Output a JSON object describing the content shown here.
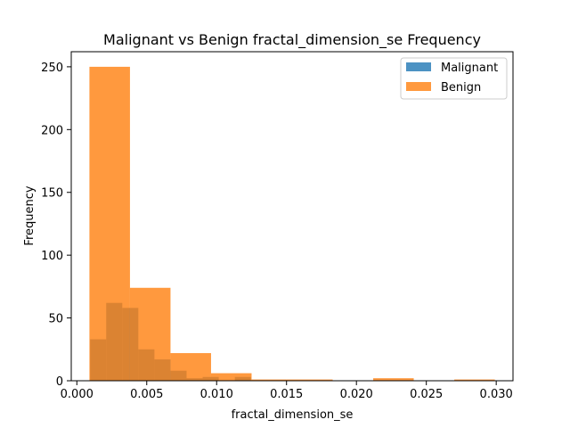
{
  "chart_data": {
    "type": "bar",
    "title": "Malignant vs Benign fractal_dimension_se Frequency",
    "xlabel": "fractal_dimension_se",
    "ylabel": "Frequency",
    "xlim": [
      -0.0004,
      0.0312
    ],
    "ylim": [
      0,
      262
    ],
    "x_ticks": [
      0.0,
      0.005,
      0.01,
      0.015,
      0.02,
      0.025,
      0.03
    ],
    "x_tick_labels": [
      "0.000",
      "0.005",
      "0.010",
      "0.015",
      "0.020",
      "0.025",
      "0.030"
    ],
    "y_ticks": [
      0,
      50,
      100,
      150,
      200,
      250
    ],
    "y_tick_labels": [
      "0",
      "50",
      "100",
      "150",
      "200",
      "250"
    ],
    "grid": false,
    "legend_position": "top-right",
    "series": [
      {
        "name": "Malignant",
        "color": "#1f77b4",
        "opacity": 0.8,
        "bins": [
          {
            "x0": 0.00095,
            "x1": 0.0021,
            "count": 33
          },
          {
            "x0": 0.0021,
            "x1": 0.00325,
            "count": 62
          },
          {
            "x0": 0.00325,
            "x1": 0.0044,
            "count": 58
          },
          {
            "x0": 0.0044,
            "x1": 0.00555,
            "count": 25
          },
          {
            "x0": 0.00555,
            "x1": 0.0067,
            "count": 17
          },
          {
            "x0": 0.0067,
            "x1": 0.00785,
            "count": 8
          },
          {
            "x0": 0.00785,
            "x1": 0.009,
            "count": 2
          },
          {
            "x0": 0.009,
            "x1": 0.01015,
            "count": 3
          },
          {
            "x0": 0.01015,
            "x1": 0.0113,
            "count": 0
          },
          {
            "x0": 0.0113,
            "x1": 0.01245,
            "count": 3
          }
        ]
      },
      {
        "name": "Benign",
        "color": "#ff7f0e",
        "opacity": 0.8,
        "bins": [
          {
            "x0": 0.0009,
            "x1": 0.0038,
            "count": 250
          },
          {
            "x0": 0.0038,
            "x1": 0.0067,
            "count": 74
          },
          {
            "x0": 0.0067,
            "x1": 0.0096,
            "count": 22
          },
          {
            "x0": 0.0096,
            "x1": 0.0125,
            "count": 6
          },
          {
            "x0": 0.0125,
            "x1": 0.0154,
            "count": 1
          },
          {
            "x0": 0.0154,
            "x1": 0.0183,
            "count": 1
          },
          {
            "x0": 0.0183,
            "x1": 0.0212,
            "count": 0
          },
          {
            "x0": 0.0212,
            "x1": 0.0241,
            "count": 2
          },
          {
            "x0": 0.0241,
            "x1": 0.027,
            "count": 0
          },
          {
            "x0": 0.027,
            "x1": 0.0299,
            "count": 1
          }
        ]
      }
    ]
  }
}
